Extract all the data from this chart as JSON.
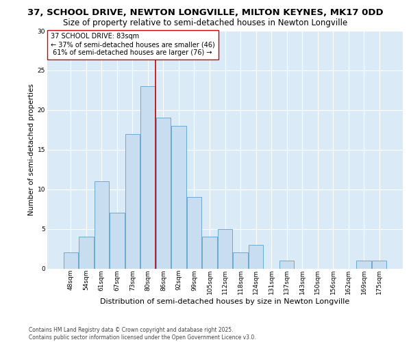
{
  "title1": "37, SCHOOL DRIVE, NEWTON LONGVILLE, MILTON KEYNES, MK17 0DD",
  "title2": "Size of property relative to semi-detached houses in Newton Longville",
  "xlabel": "Distribution of semi-detached houses by size in Newton Longville",
  "ylabel": "Number of semi-detached properties",
  "categories": [
    "48sqm",
    "54sqm",
    "61sqm",
    "67sqm",
    "73sqm",
    "80sqm",
    "86sqm",
    "92sqm",
    "99sqm",
    "105sqm",
    "112sqm",
    "118sqm",
    "124sqm",
    "131sqm",
    "137sqm",
    "143sqm",
    "150sqm",
    "156sqm",
    "162sqm",
    "169sqm",
    "175sqm"
  ],
  "values": [
    2,
    4,
    11,
    7,
    17,
    23,
    19,
    18,
    9,
    4,
    5,
    2,
    3,
    0,
    1,
    0,
    0,
    0,
    0,
    1,
    1
  ],
  "bar_color": "#c9ddf0",
  "bar_edge_color": "#6aaad4",
  "background_color": "#daeaf6",
  "grid_color": "#ffffff",
  "vline_x_index": 5,
  "vline_color": "#cc0000",
  "annotation_text": "37 SCHOOL DRIVE: 83sqm\n← 37% of semi-detached houses are smaller (46)\n 61% of semi-detached houses are larger (76) →",
  "annotation_box_color": "#ffffff",
  "annotation_box_edge": "#cc0000",
  "footer": "Contains HM Land Registry data © Crown copyright and database right 2025.\nContains public sector information licensed under the Open Government Licence v3.0.",
  "ylim": [
    0,
    30
  ],
  "title1_fontsize": 9.5,
  "title2_fontsize": 8.5,
  "xlabel_fontsize": 8,
  "ylabel_fontsize": 7.5,
  "tick_fontsize": 6.5,
  "annotation_fontsize": 7,
  "footer_fontsize": 5.5,
  "yticks": [
    0,
    5,
    10,
    15,
    20,
    25,
    30
  ]
}
